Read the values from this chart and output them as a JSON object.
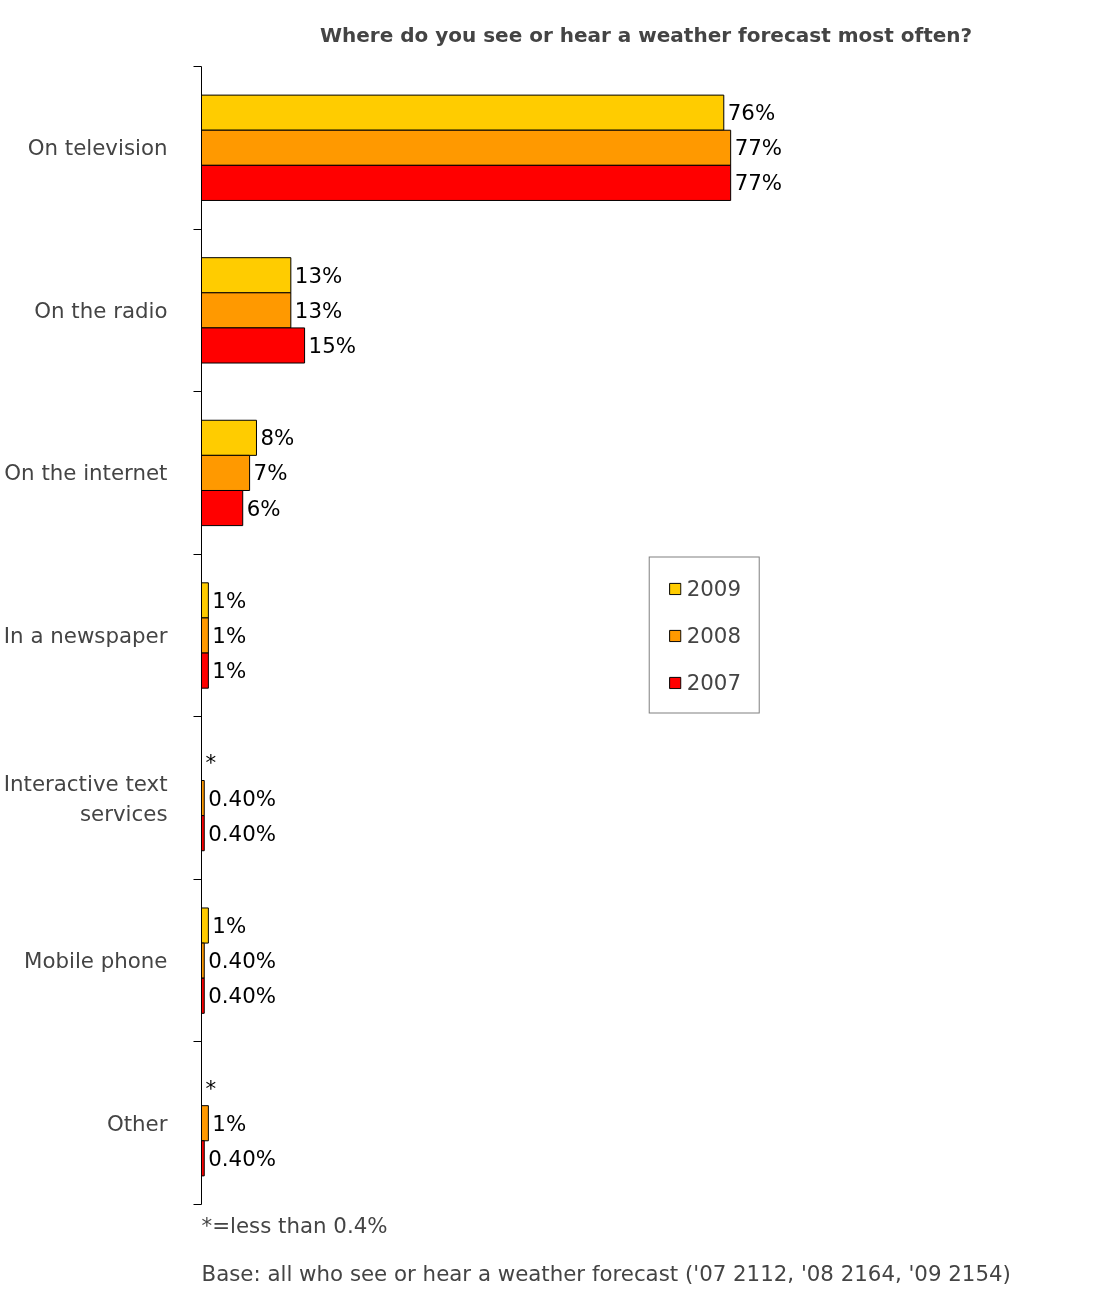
{
  "chart_data": {
    "type": "bar",
    "orientation": "horizontal",
    "title": "Where do you see or hear a weather forecast most often?",
    "categories": [
      "On television",
      "On the radio",
      "On the internet",
      "In a newspaper",
      "Interactive text services",
      "Mobile phone",
      "Other"
    ],
    "series": [
      {
        "name": "2009",
        "color": "#ffcc00",
        "values": [
          76,
          13,
          8,
          1,
          null,
          1,
          null
        ],
        "value_labels": [
          "76%",
          "13%",
          "8%",
          "1%",
          "*",
          "1%",
          "*"
        ]
      },
      {
        "name": "2008",
        "color": "#ff9900",
        "values": [
          77,
          13,
          7,
          1,
          0.4,
          0.4,
          1
        ],
        "value_labels": [
          "77%",
          "13%",
          "7%",
          "1%",
          "0.40%",
          "0.40%",
          "1%"
        ]
      },
      {
        "name": "2007",
        "color": "#ff0000",
        "values": [
          77,
          15,
          6,
          1,
          0.4,
          0.4,
          0.4
        ],
        "value_labels": [
          "77%",
          "15%",
          "6%",
          "1%",
          "0.40%",
          "0.40%",
          "0.40%"
        ]
      }
    ],
    "legend": "right",
    "grid": false,
    "annotations": [
      "*=less than 0.4%",
      "Base: all who see or hear a weather forecast ('07 2112, '08 2164, '09 2154)"
    ]
  }
}
